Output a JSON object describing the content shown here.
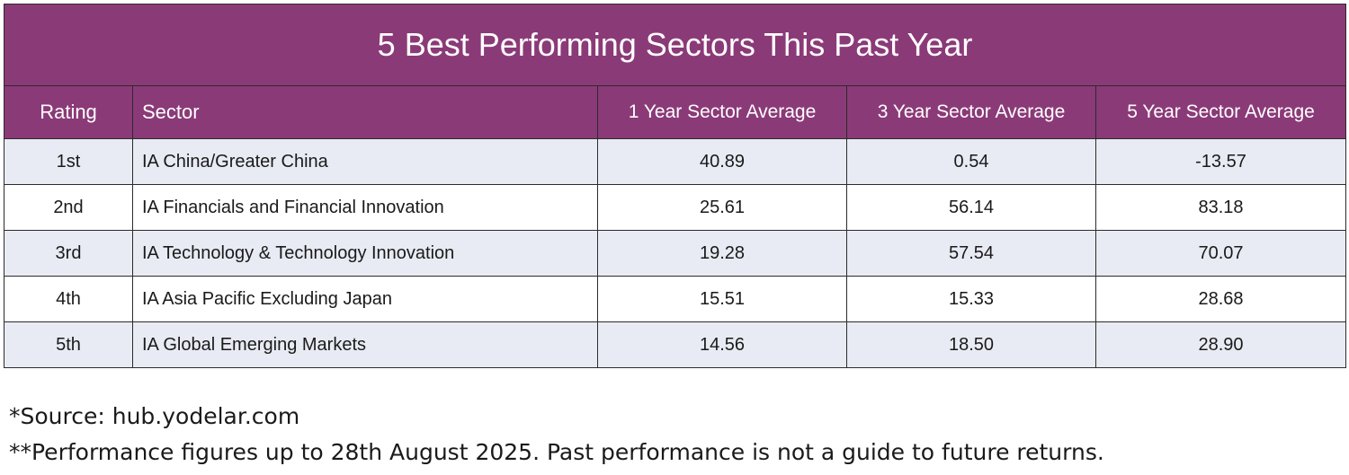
{
  "chart_data": {
    "type": "table",
    "title": "5 Best Performing Sectors This Past Year",
    "columns": [
      "Rating",
      "Sector",
      "1 Year Sector Average",
      "3 Year Sector Average",
      "5 Year Sector Average"
    ],
    "rows": [
      {
        "rating": "1st",
        "sector": "IA China/Greater China",
        "y1": "40.89",
        "y3": "0.54",
        "y5": "-13.57"
      },
      {
        "rating": "2nd",
        "sector": "IA Financials and Financial Innovation",
        "y1": "25.61",
        "y3": "56.14",
        "y5": "83.18"
      },
      {
        "rating": "3rd",
        "sector": "IA Technology & Technology Innovation",
        "y1": "19.28",
        "y3": "57.54",
        "y5": "70.07"
      },
      {
        "rating": "4th",
        "sector": "IA Asia Pacific Excluding Japan",
        "y1": "15.51",
        "y3": "15.33",
        "y5": "28.68"
      },
      {
        "rating": "5th",
        "sector": "IA Global Emerging Markets",
        "y1": "14.56",
        "y3": "18.50",
        "y5": "28.90"
      }
    ]
  },
  "notes": {
    "source": "*Source: hub.yodelar.com",
    "disclaimer": "**Performance figures up to 28th August 2025. Past performance is not a guide to future returns."
  },
  "colors": {
    "header_bg": "#8b3a78",
    "row_alt_bg": "#e8ebf3"
  }
}
